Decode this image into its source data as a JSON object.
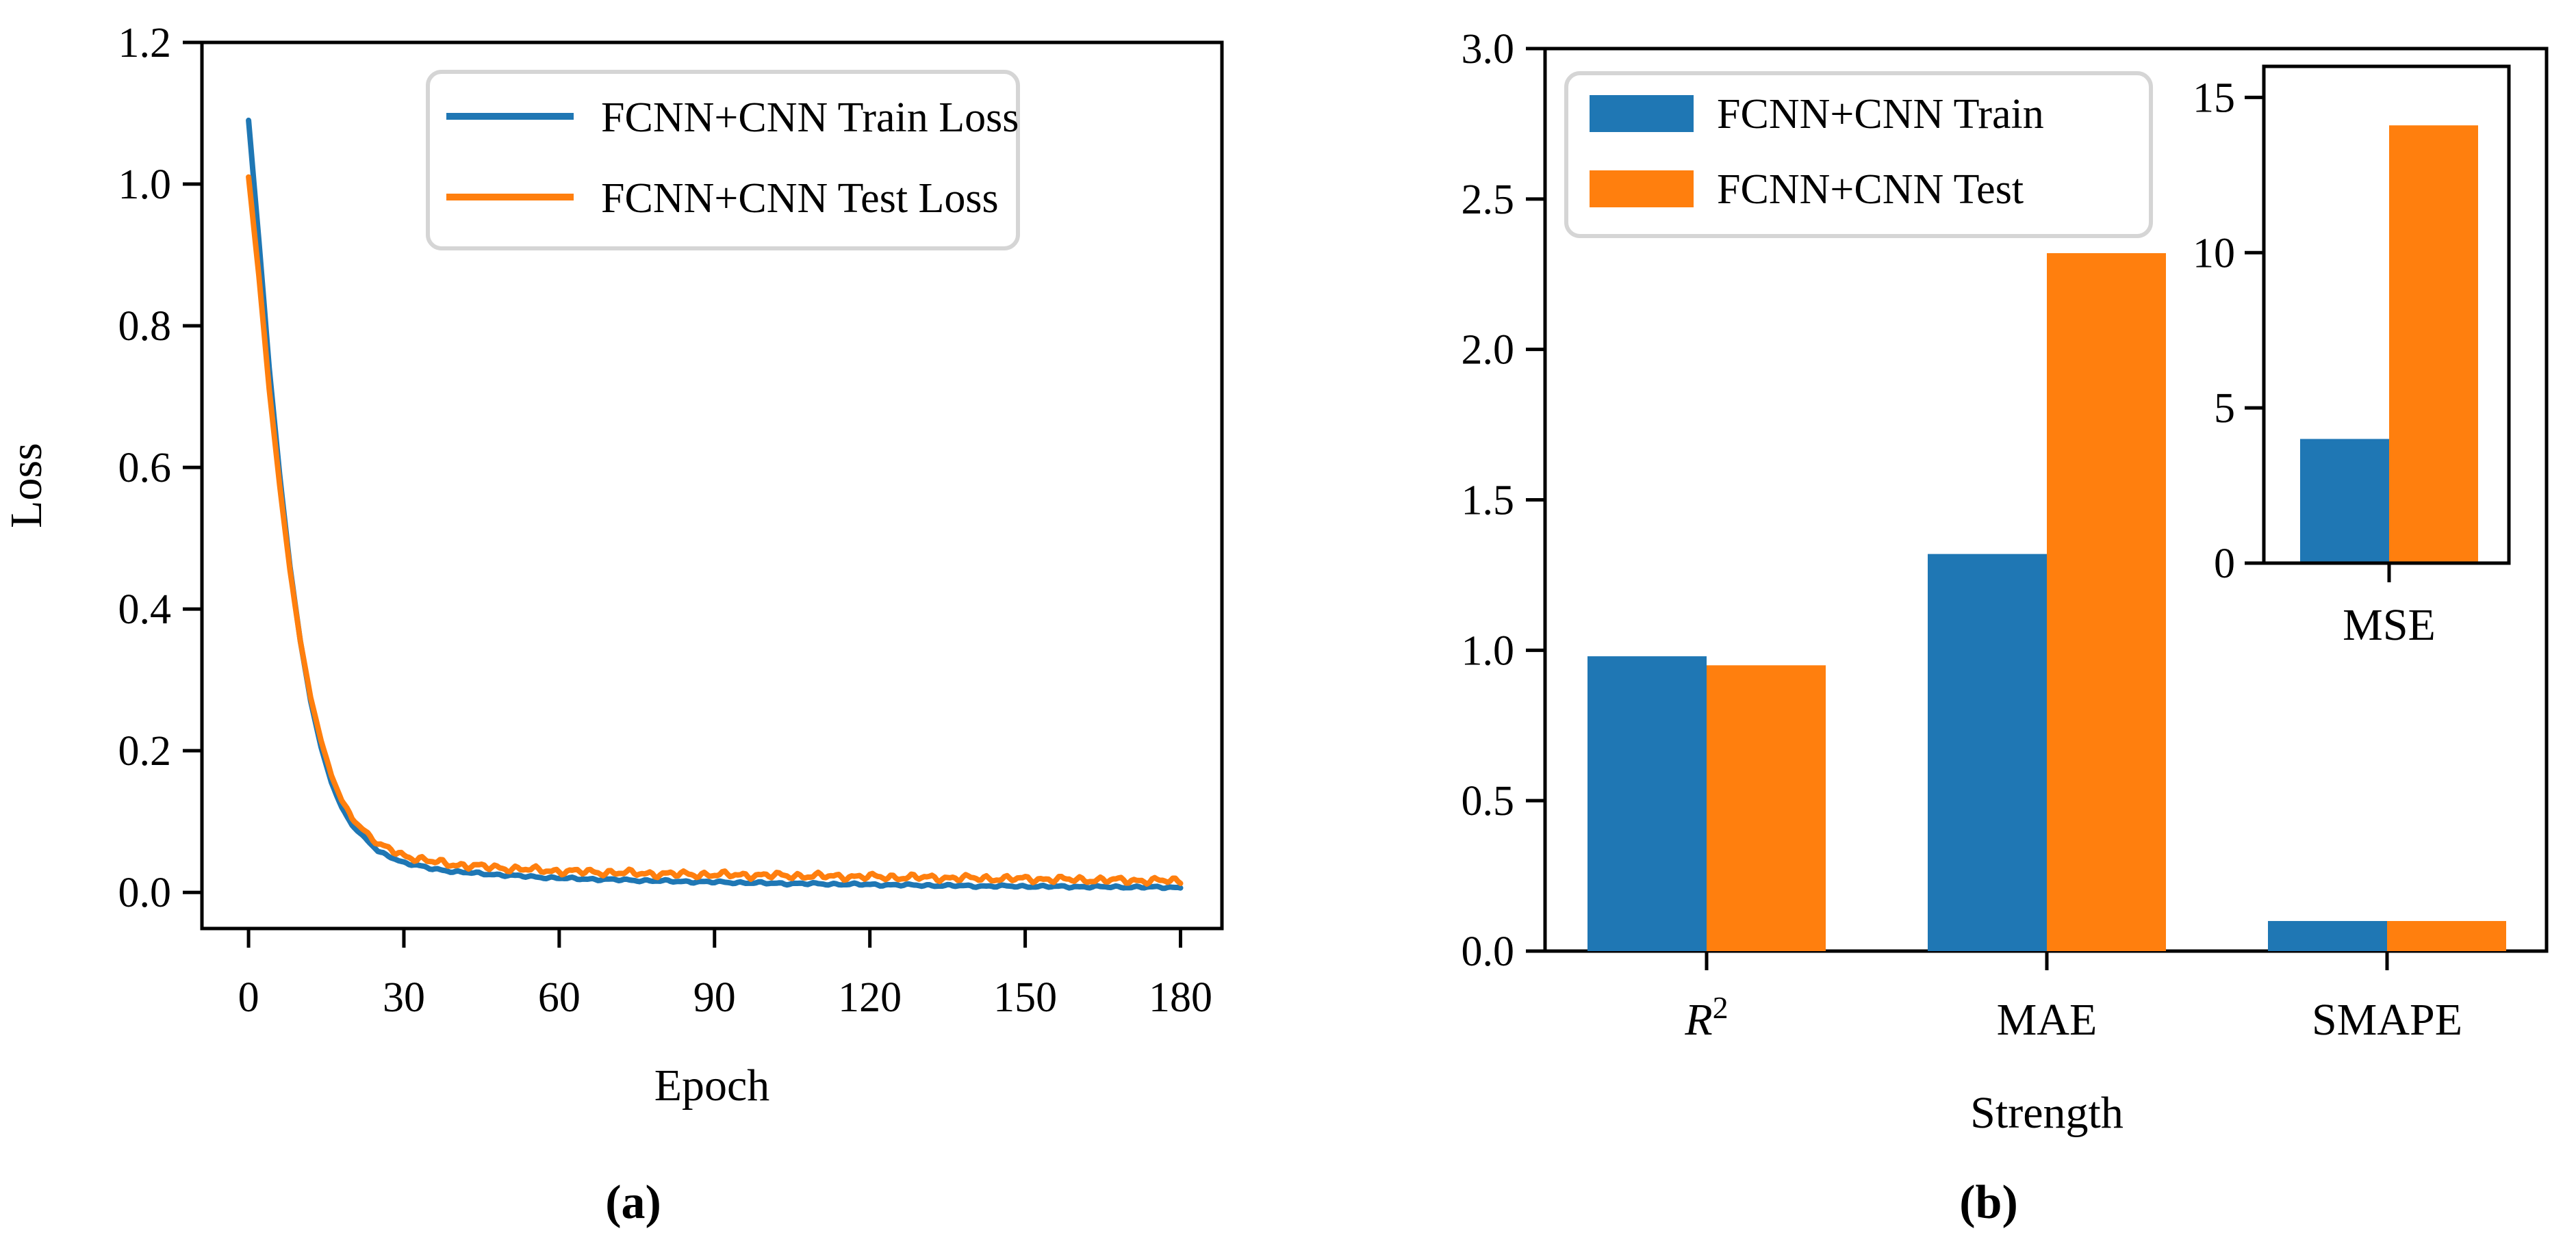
{
  "figure": {
    "background": "#ffffff"
  },
  "captions": {
    "a": "(a)",
    "b": "(b)"
  },
  "colors": {
    "train": "#1f77b4",
    "test": "#ff7f0e",
    "axis": "#000000",
    "text": "#000000",
    "legend_border": "#d5d5d5",
    "legend_fill": "#ffffff"
  },
  "chart_data": [
    {
      "type": "line",
      "id": "loss-curves",
      "panel": "a",
      "xlabel": "Epoch",
      "ylabel": "Loss",
      "xlim": [
        -9,
        188
      ],
      "ylim": [
        -0.051,
        1.2
      ],
      "xticks": [
        0,
        30,
        60,
        90,
        120,
        150,
        180
      ],
      "xtick_labels": [
        "0",
        "30",
        "60",
        "90",
        "120",
        "150",
        "180"
      ],
      "ytick_labels": [
        "0.0",
        "0.2",
        "0.4",
        "0.6",
        "0.8",
        "1.0",
        "1.2"
      ],
      "yticks": [
        0.0,
        0.2,
        0.4,
        0.6,
        0.8,
        1.0,
        1.2
      ],
      "grid": false,
      "legend": {
        "position": "upper right",
        "entries": [
          "FCNN+CNN Train Loss",
          "FCNN+CNN Test Loss"
        ]
      },
      "series": [
        {
          "name": "FCNN+CNN Train Loss",
          "color": "#1f77b4",
          "x": [
            0,
            2,
            4,
            6,
            8,
            10,
            12,
            14,
            16,
            18,
            20,
            25,
            30,
            35,
            40,
            50,
            60,
            80,
            100,
            120,
            140,
            160,
            180
          ],
          "y": [
            1.09,
            0.92,
            0.74,
            0.59,
            0.46,
            0.355,
            0.27,
            0.205,
            0.155,
            0.12,
            0.095,
            0.058,
            0.042,
            0.034,
            0.029,
            0.024,
            0.02,
            0.016,
            0.013,
            0.011,
            0.009,
            0.008,
            0.007
          ]
        },
        {
          "name": "FCNN+CNN Test Loss",
          "color": "#ff7f0e",
          "x": [
            0,
            2,
            4,
            6,
            8,
            10,
            12,
            14,
            16,
            18,
            20,
            25,
            30,
            35,
            40,
            50,
            60,
            80,
            100,
            120,
            140,
            160,
            180
          ],
          "y": [
            1.01,
            0.87,
            0.71,
            0.575,
            0.455,
            0.355,
            0.275,
            0.215,
            0.165,
            0.13,
            0.105,
            0.068,
            0.052,
            0.044,
            0.039,
            0.034,
            0.03,
            0.026,
            0.024,
            0.022,
            0.02,
            0.018,
            0.016
          ]
        }
      ]
    },
    {
      "type": "bar",
      "id": "metrics-bars",
      "panel": "b",
      "categories": [
        "R²",
        "MAE",
        "SMAPE"
      ],
      "xlabel": "Strength",
      "ylim": [
        0,
        3.0
      ],
      "ytick_labels": [
        "0.0",
        "0.5",
        "1.0",
        "1.5",
        "2.0",
        "2.5",
        "3.0"
      ],
      "yticks": [
        0.0,
        0.5,
        1.0,
        1.5,
        2.0,
        2.5,
        3.0
      ],
      "grid": false,
      "legend": {
        "position": "upper left",
        "entries": [
          "FCNN+CNN Train",
          "FCNN+CNN Test"
        ]
      },
      "series": [
        {
          "name": "FCNN+CNN Train",
          "color": "#1f77b4",
          "values": [
            0.98,
            1.32,
            0.1
          ]
        },
        {
          "name": "FCNN+CNN Test",
          "color": "#ff7f0e",
          "values": [
            0.95,
            2.32,
            0.1
          ]
        }
      ]
    },
    {
      "type": "bar",
      "id": "mse-inset",
      "panel": "b-inset",
      "categories": [
        "MSE"
      ],
      "ylim": [
        0,
        16
      ],
      "ytick_labels": [
        "0",
        "5",
        "10",
        "15"
      ],
      "yticks": [
        0,
        5,
        10,
        15
      ],
      "grid": false,
      "series": [
        {
          "name": "FCNN+CNN Train",
          "color": "#1f77b4",
          "values": [
            4.0
          ]
        },
        {
          "name": "FCNN+CNN Test",
          "color": "#ff7f0e",
          "values": [
            14.1
          ]
        }
      ]
    }
  ]
}
